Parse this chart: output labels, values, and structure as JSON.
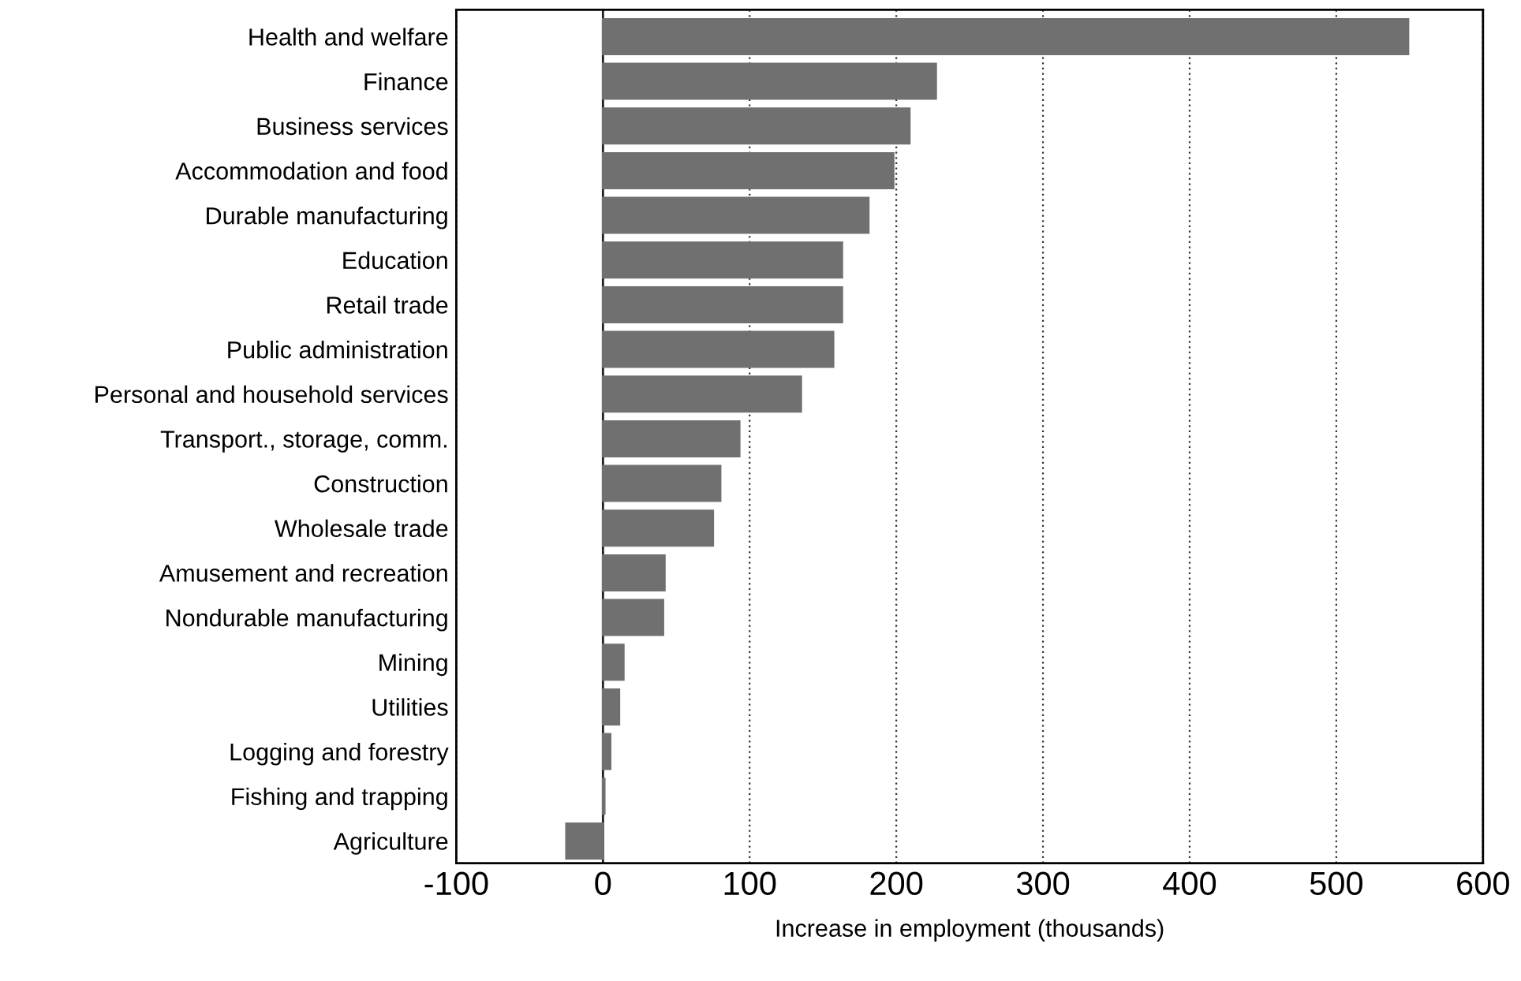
{
  "chart_data": {
    "type": "bar",
    "orientation": "horizontal",
    "xlabel": "Increase in employment (thousands)",
    "categories": [
      "Health and welfare",
      "Finance",
      "Business services",
      "Accommodation and food",
      "Durable manufacturing",
      "Education",
      "Retail trade",
      "Public administration",
      "Personal and household services",
      "Transport., storage, comm.",
      "Construction",
      "Wholesale trade",
      "Amusement and recreation",
      "Nondurable manufacturing",
      "Mining",
      "Utilities",
      "Logging and forestry",
      "Fishing and trapping",
      "Agriculture"
    ],
    "values": [
      549,
      227,
      209,
      198,
      181,
      163,
      163,
      157,
      135,
      93,
      80,
      75,
      42,
      41,
      14,
      11,
      5,
      1,
      -25
    ],
    "color": "#707070",
    "xlim": [
      -100,
      600
    ],
    "xticks": [
      -100,
      0,
      100,
      200,
      300,
      400,
      500,
      600
    ],
    "grid": "x"
  }
}
